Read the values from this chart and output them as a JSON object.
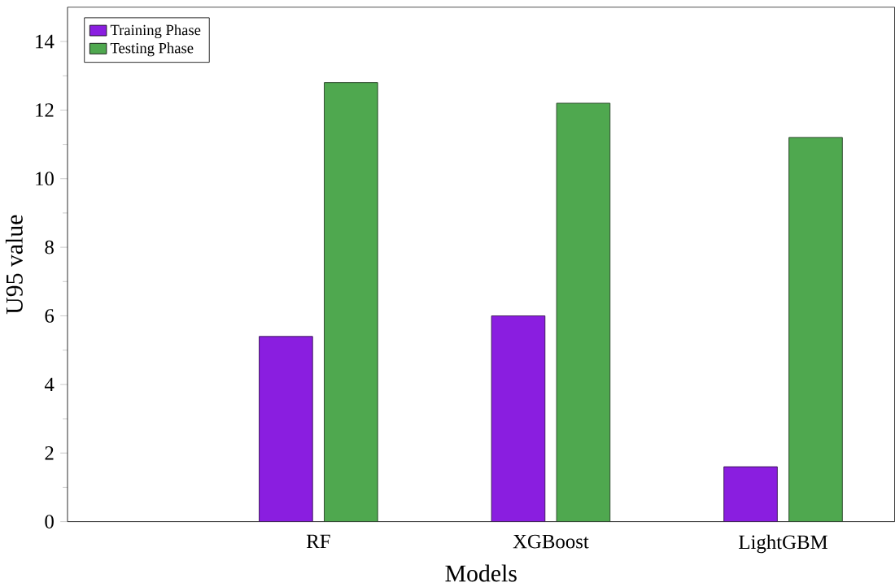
{
  "chart_data": {
    "type": "bar",
    "xlabel": "Models",
    "ylabel": "U95 value",
    "categories": [
      null,
      "RF",
      "XGBoost",
      "LightGBM"
    ],
    "series": [
      {
        "name": "Training Phase",
        "color": "#8a1ee0",
        "values": [
          null,
          5.4,
          6.0,
          1.6
        ]
      },
      {
        "name": "Testing Phase",
        "color": "#4fa84f",
        "values": [
          null,
          12.8,
          12.2,
          11.2
        ]
      }
    ],
    "ylim": [
      0,
      15
    ],
    "yticks": [
      0,
      2,
      4,
      6,
      8,
      10,
      12,
      14
    ],
    "legend": "top left"
  }
}
